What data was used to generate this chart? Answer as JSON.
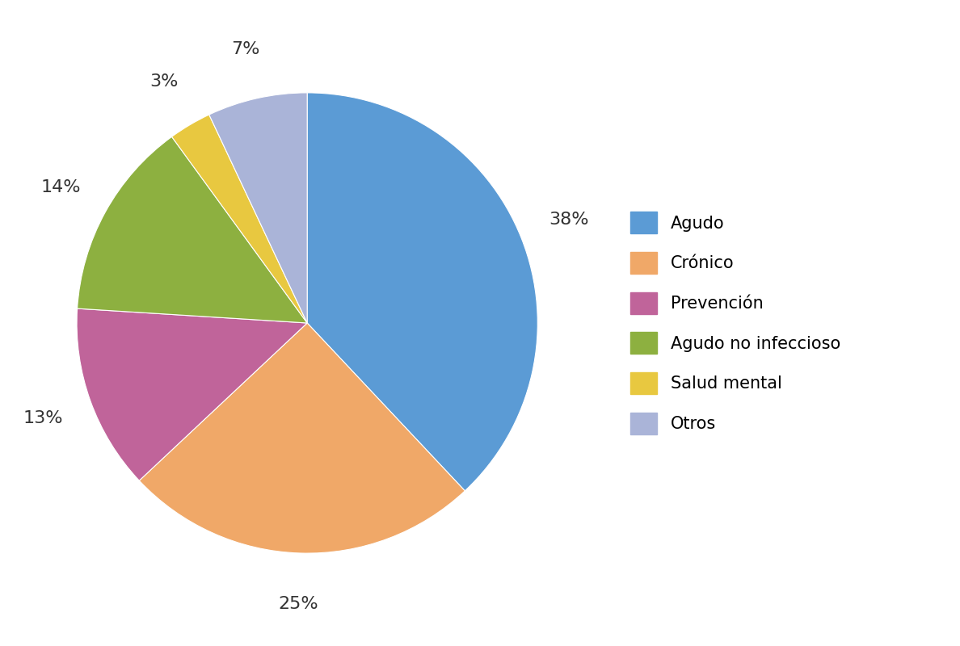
{
  "labels": [
    "Agudo",
    "Crónico",
    "Prevención",
    "Agudo no infeccioso",
    "Salud mental",
    "Otros"
  ],
  "values": [
    38,
    25,
    13,
    14,
    3,
    7
  ],
  "colors": [
    "#5b9bd5",
    "#f0a868",
    "#c0649a",
    "#8db040",
    "#e8c840",
    "#aab4d8"
  ],
  "pct_labels": [
    "38%",
    "25%",
    "13%",
    "14%",
    "3%",
    "7%"
  ],
  "figsize": [
    11.88,
    8.0
  ],
  "dpi": 100,
  "background_color": "#ffffff",
  "label_fontsize": 16,
  "legend_fontsize": 15
}
